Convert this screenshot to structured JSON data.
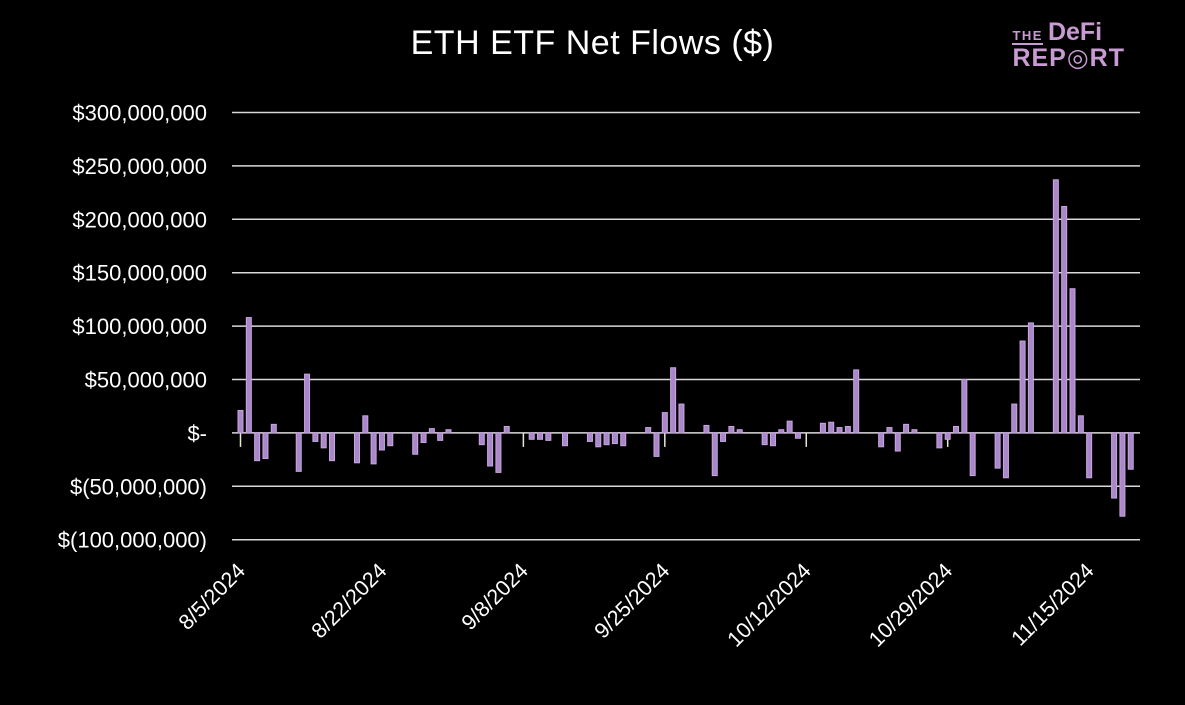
{
  "header": {
    "title": "ETH ETF Net Flows ($)"
  },
  "logo": {
    "the": "THE",
    "defi": "DeFi",
    "report_pre": "REP",
    "report_o": "◎",
    "report_post": "RT"
  },
  "colors": {
    "background": "#000000",
    "bar_fill": "#a987c9",
    "bar_edge": "#c7a6e0",
    "gridline": "#d9d9d9",
    "axis_tick": "#e6e6da",
    "text": "#ffffff",
    "logo": "#c99bd3"
  },
  "chart_data": {
    "type": "bar",
    "title": "ETH ETF Net Flows ($)",
    "xlabel": "",
    "ylabel": "",
    "unit": "USD",
    "values_scale": 1000000,
    "values_unit": "millions of $ (bar values below are in $M)",
    "grid": true,
    "legend": false,
    "ylim": [
      -100,
      300
    ],
    "y_ticks": [
      {
        "v": 300,
        "label": "$300,000,000"
      },
      {
        "v": 250,
        "label": "$250,000,000"
      },
      {
        "v": 200,
        "label": "$200,000,000"
      },
      {
        "v": 150,
        "label": "$150,000,000"
      },
      {
        "v": 100,
        "label": "$100,000,000"
      },
      {
        "v": 50,
        "label": "$50,000,000"
      },
      {
        "v": 0,
        "label": "$-"
      },
      {
        "v": -50,
        "label": "$(50,000,000)"
      },
      {
        "v": -100,
        "label": "$(100,000,000)"
      }
    ],
    "x_ticks": [
      "8/5/2024",
      "8/22/2024",
      "9/8/2024",
      "9/25/2024",
      "10/12/2024",
      "10/29/2024",
      "11/15/2024"
    ],
    "start_date": "8/5/2024",
    "series": [
      {
        "d": "8/5/2024",
        "v": 21
      },
      {
        "d": "8/6/2024",
        "v": 108
      },
      {
        "d": "8/7/2024",
        "v": -26
      },
      {
        "d": "8/8/2024",
        "v": -24
      },
      {
        "d": "8/9/2024",
        "v": 8
      },
      {
        "d": "8/12/2024",
        "v": -36
      },
      {
        "d": "8/13/2024",
        "v": 55
      },
      {
        "d": "8/14/2024",
        "v": -8
      },
      {
        "d": "8/15/2024",
        "v": -14
      },
      {
        "d": "8/16/2024",
        "v": -26
      },
      {
        "d": "8/19/2024",
        "v": -28
      },
      {
        "d": "8/20/2024",
        "v": 16
      },
      {
        "d": "8/21/2024",
        "v": -29
      },
      {
        "d": "8/22/2024",
        "v": -16
      },
      {
        "d": "8/23/2024",
        "v": -12
      },
      {
        "d": "8/26/2024",
        "v": -20
      },
      {
        "d": "8/27/2024",
        "v": -9
      },
      {
        "d": "8/28/2024",
        "v": 4
      },
      {
        "d": "8/29/2024",
        "v": -7
      },
      {
        "d": "8/30/2024",
        "v": 3
      },
      {
        "d": "9/3/2024",
        "v": -11
      },
      {
        "d": "9/4/2024",
        "v": -31
      },
      {
        "d": "9/5/2024",
        "v": -37
      },
      {
        "d": "9/6/2024",
        "v": 6
      },
      {
        "d": "9/9/2024",
        "v": -6
      },
      {
        "d": "9/10/2024",
        "v": -6
      },
      {
        "d": "9/11/2024",
        "v": -7
      },
      {
        "d": "9/13/2024",
        "v": -12
      },
      {
        "d": "9/16/2024",
        "v": -8
      },
      {
        "d": "9/17/2024",
        "v": -13
      },
      {
        "d": "9/18/2024",
        "v": -11
      },
      {
        "d": "9/19/2024",
        "v": -10
      },
      {
        "d": "9/20/2024",
        "v": -12
      },
      {
        "d": "9/23/2024",
        "v": 5
      },
      {
        "d": "9/24/2024",
        "v": -22
      },
      {
        "d": "9/25/2024",
        "v": 19
      },
      {
        "d": "9/26/2024",
        "v": 61
      },
      {
        "d": "9/27/2024",
        "v": 27
      },
      {
        "d": "9/30/2024",
        "v": 7
      },
      {
        "d": "10/1/2024",
        "v": -40
      },
      {
        "d": "10/2/2024",
        "v": -8
      },
      {
        "d": "10/3/2024",
        "v": 6
      },
      {
        "d": "10/4/2024",
        "v": 3
      },
      {
        "d": "10/7/2024",
        "v": -11
      },
      {
        "d": "10/8/2024",
        "v": -12
      },
      {
        "d": "10/9/2024",
        "v": 3
      },
      {
        "d": "10/10/2024",
        "v": 11
      },
      {
        "d": "10/11/2024",
        "v": -5
      },
      {
        "d": "10/14/2024",
        "v": 9
      },
      {
        "d": "10/15/2024",
        "v": 10
      },
      {
        "d": "10/16/2024",
        "v": 5
      },
      {
        "d": "10/17/2024",
        "v": 6
      },
      {
        "d": "10/18/2024",
        "v": 59
      },
      {
        "d": "10/21/2024",
        "v": -13
      },
      {
        "d": "10/22/2024",
        "v": 5
      },
      {
        "d": "10/23/2024",
        "v": -17
      },
      {
        "d": "10/24/2024",
        "v": 8
      },
      {
        "d": "10/25/2024",
        "v": 3
      },
      {
        "d": "10/28/2024",
        "v": -14
      },
      {
        "d": "10/29/2024",
        "v": -6
      },
      {
        "d": "10/30/2024",
        "v": 6
      },
      {
        "d": "10/31/2024",
        "v": 50
      },
      {
        "d": "11/1/2024",
        "v": -40
      },
      {
        "d": "11/4/2024",
        "v": -33
      },
      {
        "d": "11/5/2024",
        "v": -42
      },
      {
        "d": "11/6/2024",
        "v": 27
      },
      {
        "d": "11/7/2024",
        "v": 86
      },
      {
        "d": "11/8/2024",
        "v": 103
      },
      {
        "d": "11/11/2024",
        "v": 237
      },
      {
        "d": "11/12/2024",
        "v": 212
      },
      {
        "d": "11/13/2024",
        "v": 135
      },
      {
        "d": "11/14/2024",
        "v": 16
      },
      {
        "d": "11/15/2024",
        "v": -42
      },
      {
        "d": "11/18/2024",
        "v": -61
      },
      {
        "d": "11/19/2024",
        "v": -78
      },
      {
        "d": "11/20/2024",
        "v": -34
      }
    ]
  }
}
